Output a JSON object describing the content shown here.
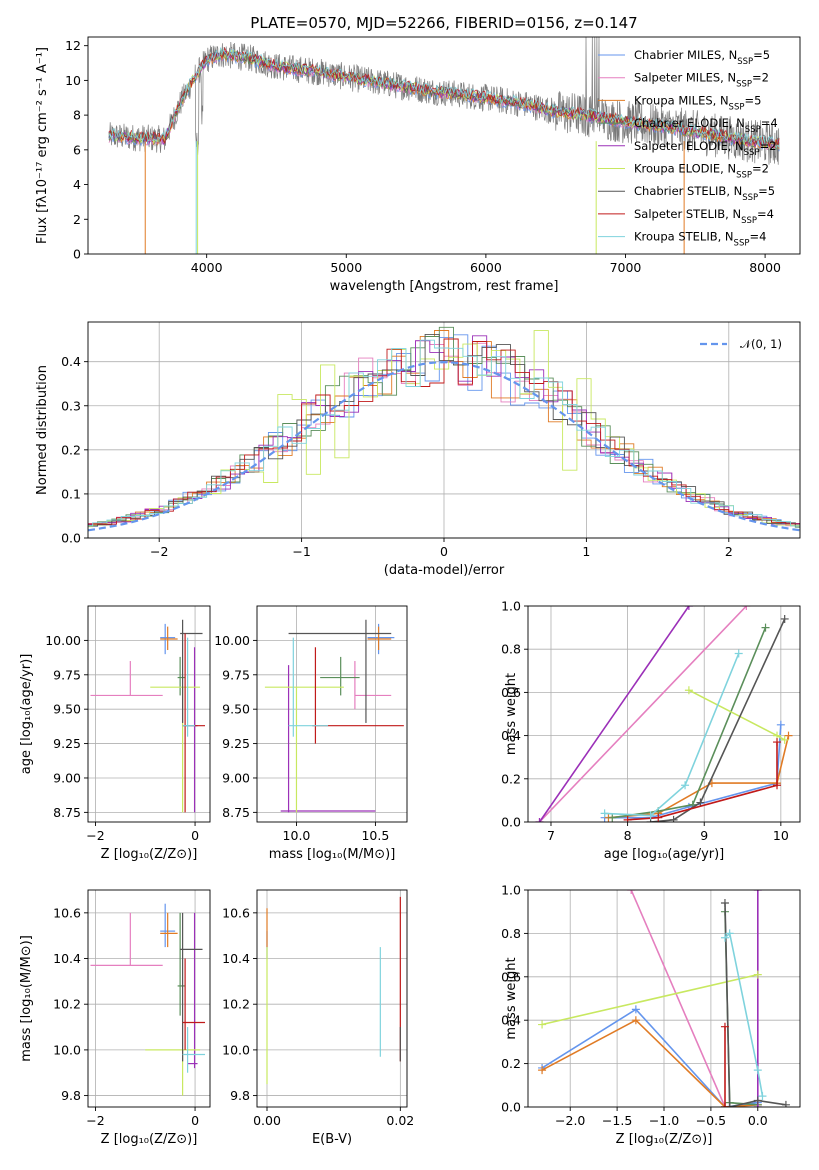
{
  "title": "PLATE=0570, MJD=52266, FIBERID=0156, z=0.147",
  "colors": {
    "chabrier_miles": "#6495ed",
    "salpeter_miles": "#e57fbf",
    "kroupa_miles": "#e07b25",
    "chabrier_elodie": "#5b8f5b",
    "salpeter_elodie": "#9b30b8",
    "kroupa_elodie": "#c8e860",
    "chabrier_stelib": "#555555",
    "salpeter_stelib": "#c01a1a",
    "kroupa_stelib": "#7fd3dd",
    "data": "#7a7a7a",
    "gauss": "#6495ed"
  },
  "chart_data": [
    {
      "type": "line",
      "panel": "spectrum",
      "xlabel": "wavelength [Angstrom, rest frame]",
      "ylabel": "Flux [fλ10⁻¹⁷ erg cm⁻² s⁻¹ A⁻¹]",
      "xlim": [
        3150,
        8250
      ],
      "ylim": [
        0,
        12.5
      ],
      "xticks": [
        "4000",
        "5000",
        "6000",
        "7000",
        "8000"
      ],
      "yticks": [
        "0",
        "2",
        "4",
        "6",
        "8",
        "10",
        "12"
      ],
      "legend_position": "top-right",
      "legend": [
        {
          "label": "Chabrier MILES, N",
          "sub": "SSP",
          "eq": "=5",
          "color": "#6495ed"
        },
        {
          "label": "Salpeter MILES, N",
          "sub": "SSP",
          "eq": "=2",
          "color": "#e57fbf"
        },
        {
          "label": "Kroupa MILES, N",
          "sub": "SSP",
          "eq": "=5",
          "color": "#e07b25"
        },
        {
          "label": "Chabrier ELODIE, N",
          "sub": "SSP",
          "eq": "=4",
          "color": "#5b8f5b"
        },
        {
          "label": "Salpeter ELODIE, N",
          "sub": "SSP",
          "eq": "=2",
          "color": "#9b30b8"
        },
        {
          "label": "Kroupa ELODIE, N",
          "sub": "SSP",
          "eq": "=2",
          "color": "#c8e860"
        },
        {
          "label": "Chabrier STELIB, N",
          "sub": "SSP",
          "eq": "=5",
          "color": "#555555"
        },
        {
          "label": "Salpeter STELIB, N",
          "sub": "SSP",
          "eq": "=4",
          "color": "#c01a1a"
        },
        {
          "label": "Kroupa STELIB, N",
          "sub": "SSP",
          "eq": "=4",
          "color": "#7fd3dd"
        }
      ],
      "continuum": {
        "x": [
          3300,
          3500,
          3700,
          3800,
          3900,
          4000,
          4100,
          4300,
          4500,
          4800,
          5000,
          5300,
          5600,
          6000,
          6300,
          6500,
          6800,
          7000,
          7300,
          7600,
          7900,
          8100
        ],
        "y": [
          6.8,
          6.7,
          6.6,
          8.5,
          10.0,
          11.2,
          11.5,
          11.3,
          10.8,
          10.5,
          10.2,
          9.8,
          9.4,
          9.0,
          8.6,
          8.2,
          7.9,
          7.6,
          7.3,
          6.9,
          6.5,
          6.3
        ]
      }
    },
    {
      "type": "line",
      "panel": "residuals",
      "xlabel": "(data-model)/error",
      "ylabel": "Normed distribution",
      "xlim": [
        -2.5,
        2.5
      ],
      "ylim": [
        0,
        0.49
      ],
      "xticks": [
        "−2",
        "−1",
        "0",
        "1",
        "2"
      ],
      "yticks": [
        "0.0",
        "0.1",
        "0.2",
        "0.3",
        "0.4"
      ],
      "legend": [
        {
          "label": "𝒩(0, 1)",
          "color": "#6495ed"
        }
      ],
      "gaussian": {
        "mu": 0,
        "sigma": 1
      }
    },
    {
      "type": "scatter",
      "panel": "age-vs-Z",
      "xlabel": "Z [log₁₀(Z/Z⊙)]",
      "ylabel": "age  [log₁₀(age/yr)]",
      "xlim": [
        -2.15,
        0.3
      ],
      "ylim": [
        8.68,
        10.25
      ],
      "xticks": [
        "−2",
        "0"
      ],
      "yticks": [
        "8.75",
        "9.00",
        "9.25",
        "9.50",
        "9.75",
        "10.00"
      ],
      "points": [
        {
          "x": -0.6,
          "y": 10.02,
          "ex": [
            -0.7,
            -0.4
          ],
          "ey": [
            9.9,
            10.12
          ],
          "color": "#6495ed"
        },
        {
          "x": -1.3,
          "y": 9.6,
          "ex": [
            -2.1,
            -0.65
          ],
          "ey": [
            9.6,
            9.85
          ],
          "color": "#e57fbf"
        },
        {
          "x": -0.55,
          "y": 10.01,
          "ex": [
            -0.7,
            -0.35
          ],
          "ey": [
            9.93,
            10.1
          ],
          "color": "#e07b25"
        },
        {
          "x": -0.3,
          "y": 9.73,
          "ex": [
            -0.35,
            -0.2
          ],
          "ey": [
            9.6,
            9.88
          ],
          "color": "#5b8f5b"
        },
        {
          "x": -0.01,
          "y": 9.38,
          "ex": [
            -0.25,
            0.05
          ],
          "ey": [
            8.75,
            9.95
          ],
          "color": "#9b30b8"
        },
        {
          "x": -0.25,
          "y": 9.66,
          "ex": [
            -0.9,
            0.1
          ],
          "ey": [
            8.75,
            9.66
          ],
          "color": "#c8e860"
        },
        {
          "x": -0.25,
          "y": 10.05,
          "ex": [
            -0.3,
            0.15
          ],
          "ey": [
            9.4,
            10.15
          ],
          "color": "#555555"
        },
        {
          "x": -0.2,
          "y": 9.38,
          "ex": [
            -0.25,
            0.2
          ],
          "ey": [
            8.75,
            10.05
          ],
          "color": "#c01a1a"
        },
        {
          "x": -0.15,
          "y": 9.38,
          "ex": [
            -0.25,
            0.0
          ],
          "ey": [
            9.3,
            10.02
          ],
          "color": "#7fd3dd"
        }
      ]
    },
    {
      "type": "scatter",
      "panel": "age-vs-mass",
      "xlabel": "mass [log₁₀(M/M⊙)]",
      "ylabel": "",
      "xlim": [
        9.75,
        10.7
      ],
      "ylim": [
        8.68,
        10.25
      ],
      "xticks": [
        "10.0",
        "10.5"
      ],
      "yticks": [
        "8.75",
        "9.00",
        "9.25",
        "9.50",
        "9.75",
        "10.00"
      ],
      "points": [
        {
          "x": 10.52,
          "y": 10.02,
          "ex": [
            10.45,
            10.62
          ],
          "ey": [
            9.9,
            10.12
          ],
          "color": "#6495ed"
        },
        {
          "x": 10.37,
          "y": 9.6,
          "ex": [
            10.37,
            10.6
          ],
          "ey": [
            9.5,
            9.85
          ],
          "color": "#e57fbf"
        },
        {
          "x": 10.52,
          "y": 10.01,
          "ex": [
            10.45,
            10.6
          ],
          "ey": [
            9.93,
            10.1
          ],
          "color": "#e07b25"
        },
        {
          "x": 10.28,
          "y": 9.73,
          "ex": [
            10.15,
            10.4
          ],
          "ey": [
            9.6,
            9.88
          ],
          "color": "#5b8f5b"
        },
        {
          "x": 9.95,
          "y": 8.76,
          "ex": [
            9.9,
            10.5
          ],
          "ey": [
            8.75,
            9.82
          ],
          "color": "#9b30b8"
        },
        {
          "x": 10.0,
          "y": 9.66,
          "ex": [
            9.8,
            10.3
          ],
          "ey": [
            8.75,
            9.66
          ],
          "color": "#c8e860"
        },
        {
          "x": 10.44,
          "y": 10.05,
          "ex": [
            9.95,
            10.6
          ],
          "ey": [
            9.4,
            10.15
          ],
          "color": "#555555"
        },
        {
          "x": 10.12,
          "y": 9.38,
          "ex": [
            10.1,
            10.68
          ],
          "ey": [
            9.25,
            9.95
          ],
          "color": "#c01a1a"
        },
        {
          "x": 9.98,
          "y": 9.38,
          "ex": [
            9.95,
            10.2
          ],
          "ey": [
            9.3,
            10.02
          ],
          "color": "#7fd3dd"
        }
      ]
    },
    {
      "type": "line",
      "panel": "massweight-vs-age",
      "xlabel": "age  [log₁₀(age/yr)]",
      "ylabel": "mass weight",
      "xlim": [
        6.7,
        10.25
      ],
      "ylim": [
        0,
        1.0
      ],
      "xticks": [
        "7",
        "8",
        "9",
        "10"
      ],
      "yticks": [
        "0.0",
        "0.2",
        "0.4",
        "0.6",
        "0.8",
        "1.0"
      ],
      "series": [
        {
          "color": "#6495ed",
          "x": [
            7.7,
            8.3,
            8.8,
            9.95,
            10.0
          ],
          "y": [
            0.02,
            0.02,
            0.07,
            0.18,
            0.45
          ]
        },
        {
          "color": "#e57fbf",
          "x": [
            6.85,
            9.55
          ],
          "y": [
            0.0,
            1.0
          ]
        },
        {
          "color": "#e07b25",
          "x": [
            7.75,
            8.4,
            9.1,
            9.95,
            10.1
          ],
          "y": [
            0.02,
            0.04,
            0.18,
            0.18,
            0.4
          ]
        },
        {
          "color": "#5b8f5b",
          "x": [
            7.8,
            8.4,
            8.85,
            9.8
          ],
          "y": [
            0.02,
            0.05,
            0.08,
            0.9
          ]
        },
        {
          "color": "#9b30b8",
          "x": [
            6.85,
            8.8
          ],
          "y": [
            0.0,
            1.0
          ]
        },
        {
          "color": "#c8e860",
          "x": [
            8.8,
            9.95,
            10.05
          ],
          "y": [
            0.61,
            0.4,
            0.38
          ]
        },
        {
          "color": "#555555",
          "x": [
            8.3,
            8.6,
            8.95,
            10.05
          ],
          "y": [
            0.0,
            0.01,
            0.09,
            0.94
          ]
        },
        {
          "color": "#c01a1a",
          "x": [
            8.0,
            8.4,
            9.95,
            9.95
          ],
          "y": [
            0.01,
            0.02,
            0.17,
            0.37
          ]
        },
        {
          "color": "#7fd3dd",
          "x": [
            7.7,
            8.3,
            8.75,
            9.45
          ],
          "y": [
            0.04,
            0.03,
            0.17,
            0.78
          ]
        }
      ]
    },
    {
      "type": "scatter",
      "panel": "mass-vs-Z",
      "xlabel": "Z [log₁₀(Z/Z⊙)]",
      "ylabel": "mass [log₁₀(M/M⊙)]",
      "xlim": [
        -2.15,
        0.3
      ],
      "ylim": [
        9.75,
        10.7
      ],
      "xticks": [
        "−2",
        "0"
      ],
      "yticks": [
        "9.8",
        "10.0",
        "10.2",
        "10.4",
        "10.6"
      ],
      "points": [
        {
          "x": -0.6,
          "y": 10.52,
          "ex": [
            -0.7,
            -0.4
          ],
          "ey": [
            10.45,
            10.64
          ],
          "color": "#6495ed"
        },
        {
          "x": -1.3,
          "y": 10.37,
          "ex": [
            -2.1,
            -0.65
          ],
          "ey": [
            10.37,
            10.6
          ],
          "color": "#e57fbf"
        },
        {
          "x": -0.55,
          "y": 10.51,
          "ex": [
            -0.7,
            -0.35
          ],
          "ey": [
            10.45,
            10.6
          ],
          "color": "#e07b25"
        },
        {
          "x": -0.3,
          "y": 10.28,
          "ex": [
            -0.35,
            -0.2
          ],
          "ey": [
            10.15,
            10.6
          ],
          "color": "#5b8f5b"
        },
        {
          "x": -0.01,
          "y": 9.94,
          "ex": [
            -0.15,
            0.05
          ],
          "ey": [
            9.92,
            10.6
          ],
          "color": "#9b30b8"
        },
        {
          "x": -0.25,
          "y": 10.0,
          "ex": [
            -1.0,
            0.1
          ],
          "ey": [
            9.8,
            10.0
          ],
          "color": "#c8e860"
        },
        {
          "x": -0.25,
          "y": 10.44,
          "ex": [
            -0.3,
            0.15
          ],
          "ey": [
            9.95,
            10.6
          ],
          "color": "#555555"
        },
        {
          "x": -0.2,
          "y": 10.12,
          "ex": [
            -0.25,
            0.2
          ],
          "ey": [
            10.0,
            10.4
          ],
          "color": "#c01a1a"
        },
        {
          "x": -0.15,
          "y": 9.98,
          "ex": [
            -0.25,
            0.2
          ],
          "ey": [
            9.9,
            10.1
          ],
          "color": "#7fd3dd"
        }
      ]
    },
    {
      "type": "scatter",
      "panel": "mass-vs-EBV",
      "xlabel": "E(B-V)",
      "ylabel": "",
      "xlim": [
        -0.0015,
        0.021
      ],
      "ylim": [
        9.75,
        10.7
      ],
      "xticks": [
        "0.00",
        "0.02"
      ],
      "yticks": [
        "9.8",
        "10.0",
        "10.2",
        "10.4",
        "10.6"
      ],
      "points": [
        {
          "x": 0.0,
          "y": 10.45,
          "ey": [
            10.4,
            10.52
          ],
          "color": "#6495ed"
        },
        {
          "x": 0.0,
          "y": 10.55,
          "ey": [
            10.45,
            10.62
          ],
          "color": "#e07b25"
        },
        {
          "x": 0.0,
          "y": 10.0,
          "ey": [
            9.85,
            10.45
          ],
          "color": "#c8e860"
        },
        {
          "x": 0.017,
          "y": 10.2,
          "ey": [
            9.97,
            10.45
          ],
          "color": "#7fd3dd"
        },
        {
          "x": 0.02,
          "y": 10.3,
          "ey": [
            9.95,
            10.67
          ],
          "color": "#c01a1a"
        },
        {
          "x": 0.02,
          "y": 10.0,
          "ey": [
            9.95,
            10.1
          ],
          "color": "#555555"
        }
      ]
    },
    {
      "type": "line",
      "panel": "massweight-vs-Z",
      "xlabel": "Z [log₁₀(Z/Z⊙)]",
      "ylabel": "mass weight",
      "xlim": [
        -2.45,
        0.45
      ],
      "ylim": [
        0,
        1.0
      ],
      "xticks": [
        "−2.0",
        "−1.5",
        "−1.0",
        "−0.5",
        "0.0"
      ],
      "yticks": [
        "0.0",
        "0.2",
        "0.4",
        "0.6",
        "0.8",
        "1.0"
      ],
      "series": [
        {
          "color": "#6495ed",
          "x": [
            -2.3,
            -1.3,
            -0.35,
            0.0
          ],
          "y": [
            0.18,
            0.45,
            0.0,
            0.02
          ]
        },
        {
          "color": "#e57fbf",
          "x": [
            -1.35,
            -0.35
          ],
          "y": [
            1.0,
            0.0
          ]
        },
        {
          "color": "#e07b25",
          "x": [
            -2.3,
            -1.3,
            -0.35,
            0.0
          ],
          "y": [
            0.17,
            0.4,
            0.0,
            0.01
          ]
        },
        {
          "color": "#5b8f5b",
          "x": [
            -0.35,
            -0.3,
            0.0
          ],
          "y": [
            0.9,
            0.02,
            0.01
          ]
        },
        {
          "color": "#9b30b8",
          "x": [
            0.0,
            0.0
          ],
          "y": [
            0.0,
            1.0
          ]
        },
        {
          "color": "#c8e860",
          "x": [
            -2.3,
            0.0
          ],
          "y": [
            0.38,
            0.61
          ]
        },
        {
          "color": "#555555",
          "x": [
            -0.35,
            -0.3,
            0.0,
            0.3
          ],
          "y": [
            0.94,
            0.0,
            0.03,
            0.01
          ]
        },
        {
          "color": "#c01a1a",
          "x": [
            -0.35,
            -0.35
          ],
          "y": [
            0.0,
            0.37
          ]
        },
        {
          "color": "#7fd3dd",
          "x": [
            -0.35,
            -0.3,
            0.0,
            0.05
          ],
          "y": [
            0.78,
            0.8,
            0.17,
            0.05
          ]
        }
      ]
    }
  ]
}
